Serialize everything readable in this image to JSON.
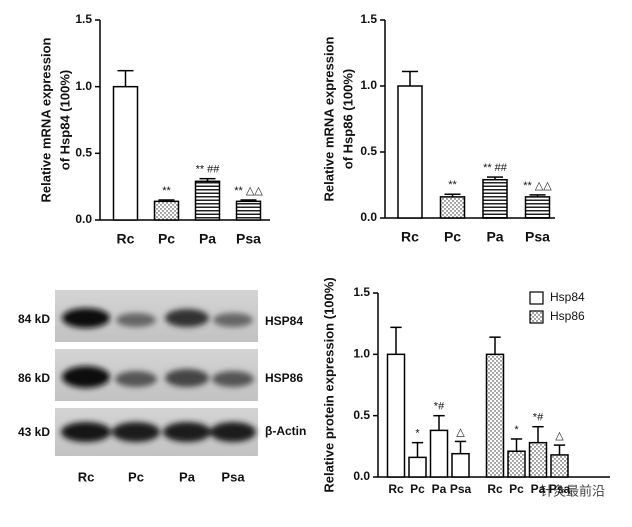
{
  "chart_data": [
    {
      "type": "bar",
      "ylabel": [
        "Relative mRNA expression",
        "of Hsp84 (100%)"
      ],
      "categories": [
        "Rc",
        "Pc",
        "Pa",
        "Psa"
      ],
      "values": [
        1.0,
        0.14,
        0.29,
        0.14
      ],
      "errors": [
        0.12,
        0.01,
        0.02,
        0.01
      ],
      "annotations": [
        null,
        "**",
        "** ##",
        "** △△"
      ],
      "patterns": [
        "none",
        "dots",
        "hlines",
        "hlines"
      ],
      "color": "#000000",
      "ylim": [
        0,
        1.5
      ],
      "yticks": [
        {
          "value": 0,
          "label": "0.0"
        },
        0.5,
        {
          "value": 1,
          "label": "1.0"
        },
        1.5
      ]
    },
    {
      "type": "bar",
      "ylabel": [
        "Relative mRNA expression",
        "of Hsp86 (100%)"
      ],
      "categories": [
        "Rc",
        "Pc",
        "Pa",
        "Psa"
      ],
      "values": [
        1.0,
        0.16,
        0.29,
        0.16
      ],
      "errors": [
        0.11,
        0.02,
        0.02,
        0.015
      ],
      "annotations": [
        null,
        "**",
        "** ##",
        "** △△"
      ],
      "patterns": [
        "none",
        "dots",
        "hlines",
        "hlines"
      ],
      "color": "#000000",
      "ylim": [
        0,
        1.5
      ],
      "yticks": [
        {
          "value": 0,
          "label": "0.0"
        },
        0.5,
        {
          "value": 1,
          "label": "1.0"
        },
        1.5
      ]
    },
    {
      "type": "grouped_bar",
      "ylabel": [
        "Relative protein expression (100%)"
      ],
      "categories": [
        "Rc",
        "Pc",
        "Pa",
        "Psa"
      ],
      "series": [
        {
          "name": "Hsp84",
          "pattern": "none",
          "values": [
            1.0,
            0.16,
            0.38,
            0.19
          ],
          "errors": [
            0.22,
            0.12,
            0.12,
            0.1
          ],
          "annotations": [
            null,
            "*",
            "*#",
            "△"
          ]
        },
        {
          "name": "Hsp86",
          "pattern": "dots",
          "values": [
            1.0,
            0.21,
            0.28,
            0.18
          ],
          "errors": [
            0.14,
            0.1,
            0.13,
            0.08
          ],
          "annotations": [
            null,
            "*",
            "*#",
            "△"
          ]
        }
      ],
      "color": "#000000",
      "legend": "top-right",
      "ylim": [
        0,
        1.5
      ],
      "yticks": [
        {
          "value": 0,
          "label": "0.0"
        },
        0.5,
        {
          "value": 1,
          "label": "1.0"
        },
        1.5
      ]
    }
  ],
  "blot": {
    "sizes": [
      "84 kD",
      "86 kD",
      "43 kD"
    ],
    "proteins": [
      "HSP84",
      "HSP86",
      "β-Actin"
    ],
    "lanes": [
      "Rc",
      "Pc",
      "Pa",
      "Psa"
    ]
  },
  "watermark": "针灸最前沿"
}
